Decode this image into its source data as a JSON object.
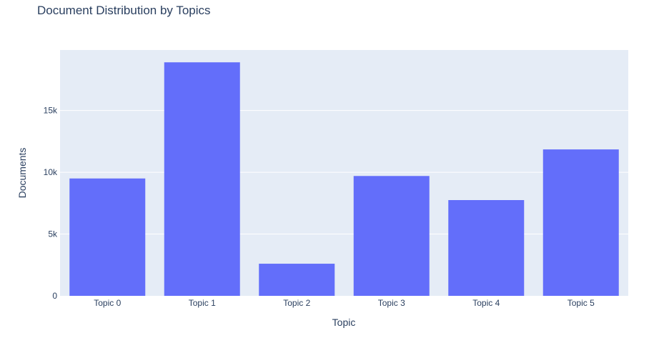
{
  "chart_data": {
    "type": "bar",
    "title": "Document Distribution by Topics",
    "xlabel": "Topic",
    "ylabel": "Documents",
    "categories": [
      "Topic 0",
      "Topic 1",
      "Topic 2",
      "Topic 3",
      "Topic 4",
      "Topic 5"
    ],
    "values": [
      9500,
      18900,
      2600,
      9700,
      7750,
      11850
    ],
    "ylim": [
      0,
      19895
    ],
    "yticks": [
      0,
      5000,
      10000,
      15000
    ],
    "ytick_labels": [
      "0",
      "5k",
      "10k",
      "15k"
    ],
    "grid": true,
    "legend": "none",
    "colors": {
      "bar": "#636efa",
      "plot_bg": "#e5ecf6",
      "grid": "#ffffff",
      "text": "#2a3f5f"
    }
  }
}
